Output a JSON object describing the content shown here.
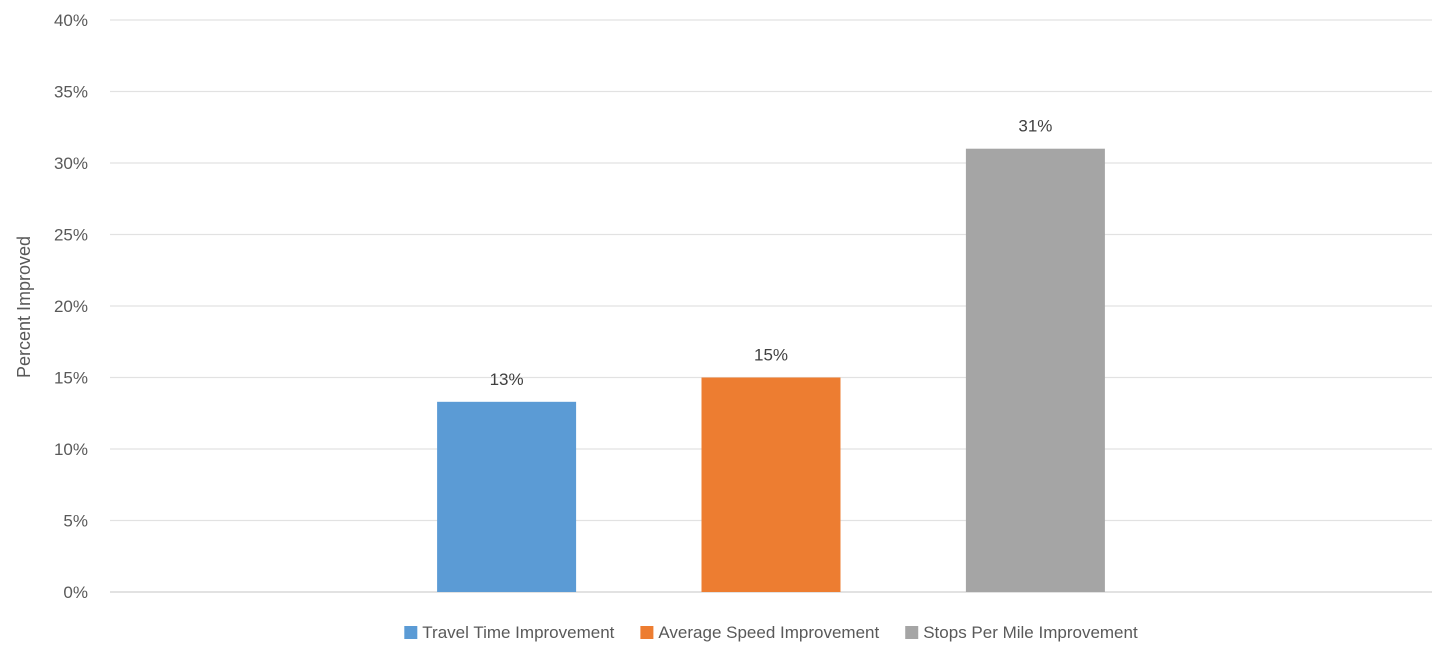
{
  "chart_data": {
    "type": "bar",
    "title": "",
    "xlabel": "",
    "ylabel": "Percent Improved",
    "ylim": [
      0,
      40
    ],
    "y_ticks": [
      "0%",
      "5%",
      "10%",
      "15%",
      "20%",
      "25%",
      "30%",
      "35%",
      "40%"
    ],
    "grid": "horizontal",
    "legend_position": "bottom",
    "series": [
      {
        "name": "Travel Time Improvement",
        "value": 13.3,
        "label": "13%",
        "color": "#5B9BD5"
      },
      {
        "name": "Average Speed Improvement",
        "value": 15.0,
        "label": "15%",
        "color": "#ED7D31"
      },
      {
        "name": "Stops Per Mile Improvement",
        "value": 31.0,
        "label": "31%",
        "color": "#A5A5A5"
      }
    ]
  }
}
